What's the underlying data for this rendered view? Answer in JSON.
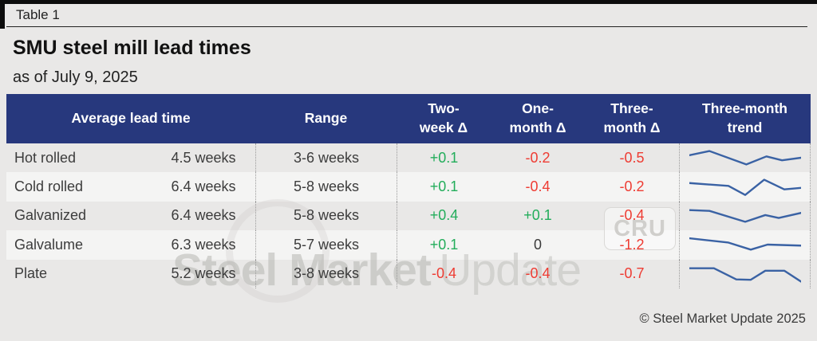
{
  "meta": {
    "table_label": "Table 1",
    "title": "SMU steel mill lead times",
    "subtitle": "as of July 9, 2025",
    "copyright": "© Steel Market Update 2025"
  },
  "watermark": {
    "primary": "Steel Market",
    "secondary": "Update",
    "badge": "CRU"
  },
  "colors": {
    "header_blue": "#27387d",
    "positive_green": "#23ad5b",
    "negative_red": "#ee3c33",
    "sparkline_blue": "#3a62a4",
    "background_gray": "#e9e8e7",
    "stripe_gray": "#f4f4f3"
  },
  "chart_data": {
    "type": "table",
    "columns": [
      "Average lead time",
      "Range",
      "Two-\nweek Δ",
      "One-\nmonth Δ",
      "Three-\nmonth Δ",
      "Three-month\ntrend"
    ],
    "rows": [
      {
        "product": "Hot rolled",
        "average": "4.5 weeks",
        "range": "3-6 weeks",
        "two_week_delta": "+0.1",
        "one_month_delta": "-0.2",
        "three_month_delta": "-0.5",
        "trend": [
          [
            0,
            0.35
          ],
          [
            18,
            0.1
          ],
          [
            51,
            0.9
          ],
          [
            69,
            0.42
          ],
          [
            83,
            0.65
          ],
          [
            100,
            0.5
          ]
        ]
      },
      {
        "product": "Cold rolled",
        "average": "6.4 weeks",
        "range": "5-8 weeks",
        "two_week_delta": "+0.1",
        "one_month_delta": "-0.4",
        "three_month_delta": "-0.2",
        "trend": [
          [
            0,
            0.25
          ],
          [
            35,
            0.42
          ],
          [
            50,
            0.96
          ],
          [
            67,
            0.05
          ],
          [
            85,
            0.63
          ],
          [
            100,
            0.54
          ]
        ]
      },
      {
        "product": "Galvanized",
        "average": "6.4 weeks",
        "range": "5-8 weeks",
        "two_week_delta": "+0.4",
        "one_month_delta": "+0.1",
        "three_month_delta": "-0.4",
        "trend": [
          [
            0,
            0.15
          ],
          [
            18,
            0.2
          ],
          [
            50,
            0.85
          ],
          [
            68,
            0.45
          ],
          [
            80,
            0.62
          ],
          [
            100,
            0.32
          ]
        ]
      },
      {
        "product": "Galvalume",
        "average": "6.3 weeks",
        "range": "5-7 weeks",
        "two_week_delta": "+0.1",
        "one_month_delta": "0",
        "three_month_delta": "-1.2",
        "trend": [
          [
            0,
            0.12
          ],
          [
            35,
            0.38
          ],
          [
            55,
            0.8
          ],
          [
            70,
            0.5
          ],
          [
            100,
            0.56
          ]
        ]
      },
      {
        "product": "Plate",
        "average": "5.2 weeks",
        "range": "3-8 weeks",
        "two_week_delta": "-0.4",
        "one_month_delta": "-0.4",
        "three_month_delta": "-0.7",
        "trend": [
          [
            0,
            0.15
          ],
          [
            22,
            0.15
          ],
          [
            42,
            0.82
          ],
          [
            55,
            0.84
          ],
          [
            68,
            0.3
          ],
          [
            85,
            0.3
          ],
          [
            100,
            0.95
          ]
        ]
      }
    ]
  }
}
